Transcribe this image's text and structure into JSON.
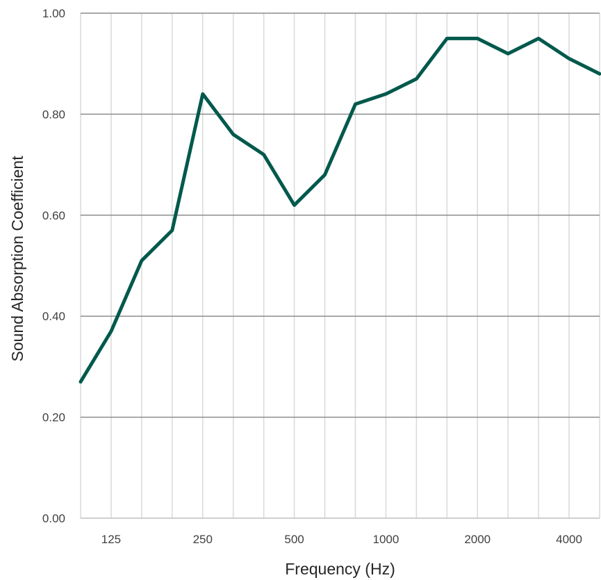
{
  "chart_data": {
    "type": "line",
    "xlabel": "Frequency (Hz)",
    "ylabel": "Sound Absorption Coefficient",
    "x": [
      100,
      125,
      160,
      200,
      250,
      315,
      400,
      500,
      630,
      800,
      1000,
      1250,
      1600,
      2000,
      2500,
      3150,
      4000,
      5000
    ],
    "x_tick_labels": [
      "125",
      "250",
      "500",
      "1000",
      "2000",
      "4000"
    ],
    "x_tick_label_positions": [
      125,
      250,
      500,
      1000,
      2000,
      4000
    ],
    "y_tick_labels": [
      "0.00",
      "0.20",
      "0.40",
      "0.60",
      "0.80",
      "1.00"
    ],
    "ylim": [
      0,
      1
    ],
    "grid": true,
    "series": [
      {
        "values": [
          0.27,
          0.37,
          0.51,
          0.57,
          0.84,
          0.76,
          0.72,
          0.62,
          0.68,
          0.82,
          0.84,
          0.87,
          0.95,
          0.95,
          0.92,
          0.95,
          0.91,
          0.88
        ],
        "color": "#00594C"
      }
    ],
    "colors": {
      "major_grid": "#8c8c8c",
      "minor_grid": "#d9d9d9",
      "axis": "#bfbfbf"
    }
  }
}
